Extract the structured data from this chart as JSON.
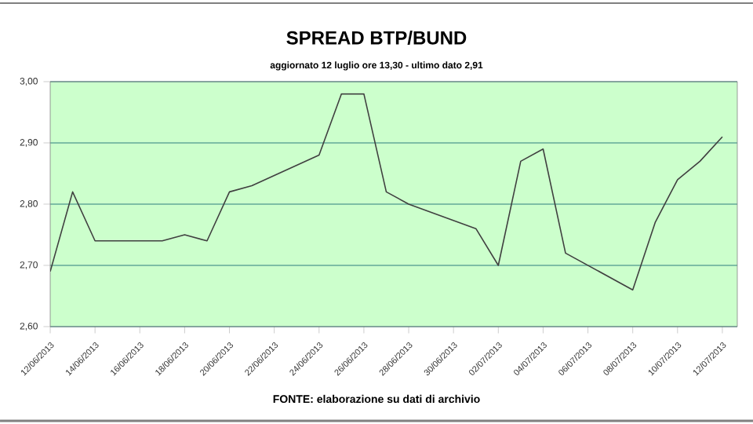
{
  "chart_data": {
    "type": "line",
    "title": "SPREAD BTP/BUND",
    "subtitle": "aggiornato 12 luglio ore 13,30 - ultimo dato 2,91",
    "x": [
      "2013-06-12",
      "2013-06-13",
      "2013-06-14",
      "2013-06-17",
      "2013-06-18",
      "2013-06-19",
      "2013-06-20",
      "2013-06-21",
      "2013-06-24",
      "2013-06-25",
      "2013-06-26",
      "2013-06-27",
      "2013-06-28",
      "2013-07-01",
      "2013-07-02",
      "2013-07-03",
      "2013-07-04",
      "2013-07-05",
      "2013-07-08",
      "2013-07-09",
      "2013-07-10",
      "2013-07-11",
      "2013-07-12"
    ],
    "series": [
      {
        "color": "#404040",
        "values": [
          2.69,
          2.82,
          2.74,
          2.74,
          2.75,
          2.74,
          2.82,
          2.83,
          2.88,
          2.98,
          2.98,
          2.82,
          2.8,
          2.76,
          2.7,
          2.87,
          2.89,
          2.72,
          2.66,
          2.77,
          2.84,
          2.87,
          2.91
        ]
      }
    ],
    "xlim": [
      "2013-06-12",
      "2013-07-12T16:00"
    ],
    "xticks": [
      {
        "value": "2013-06-12",
        "label": "12/06/2013"
      },
      {
        "value": "2013-06-14",
        "label": "14/06/2013"
      },
      {
        "value": "2013-06-16",
        "label": "16/06/2013"
      },
      {
        "value": "2013-06-18",
        "label": "18/06/2013"
      },
      {
        "value": "2013-06-20",
        "label": "20/06/2013"
      },
      {
        "value": "2013-06-22",
        "label": "22/06/2013"
      },
      {
        "value": "2013-06-24",
        "label": "24/06/2013"
      },
      {
        "value": "2013-06-26",
        "label": "26/06/2013"
      },
      {
        "value": "2013-06-28",
        "label": "28/06/2013"
      },
      {
        "value": "2013-06-30",
        "label": "30/06/2013"
      },
      {
        "value": "2013-07-02",
        "label": "02/07/2013"
      },
      {
        "value": "2013-07-04",
        "label": "04/07/2013"
      },
      {
        "value": "2013-07-06",
        "label": "06/07/2013"
      },
      {
        "value": "2013-07-08",
        "label": "08/07/2013"
      },
      {
        "value": "2013-07-10",
        "label": "10/07/2013"
      },
      {
        "value": "2013-07-12",
        "label": "12/07/2013"
      }
    ],
    "ylim": [
      2.6,
      3.0
    ],
    "yticks": [
      {
        "value": 2.6,
        "label": "2,60"
      },
      {
        "value": 2.7,
        "label": "2,70"
      },
      {
        "value": 2.8,
        "label": "2,80"
      },
      {
        "value": 2.9,
        "label": "2,90"
      },
      {
        "value": 3.0,
        "label": "3,00"
      }
    ],
    "grid": "y",
    "marker": "none",
    "line_style": "solid",
    "annotations": [
      "FONTE: elaborazione su dati di archivio"
    ]
  }
}
